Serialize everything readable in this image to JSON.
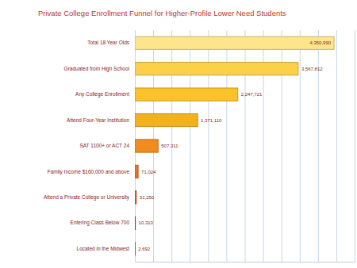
{
  "chart_data": {
    "type": "bar",
    "orientation": "horizontal",
    "title": "Private College Enrollment Funnel for Higher-Profile Lower Need Students",
    "categories": [
      "Total 18 Year Olds",
      "Graduated from High School",
      "Any College Enrollment",
      "Attend Four-Year Institution",
      "SAT 1100+ or ACT 24",
      "Family Income $160,000 and above",
      "Attend a Private College or University",
      "Entering Class Below 700",
      "Located in the Midwest"
    ],
    "values": [
      4350990,
      3567812,
      2247721,
      1371110,
      507311,
      71024,
      31250,
      10313,
      2692
    ],
    "value_labels": [
      "4,350,990",
      "3,567,812",
      "2,247,721",
      "1,371,110",
      "507,311",
      "71,024",
      "31,250",
      "10,313",
      "2,692"
    ],
    "colors": [
      "#fde58c",
      "#fdd04a",
      "#fcc22a",
      "#f2b21c",
      "#f28c1c",
      "#ea7324",
      "#e0612a",
      "#c9382a",
      "#b82626"
    ],
    "xlim": [
      0,
      4800000
    ],
    "xticks": [
      0,
      400000,
      800000,
      1200000,
      1600000,
      2000000,
      2400000,
      2800000,
      3200000,
      3600000,
      4000000,
      4400000,
      4800000
    ],
    "grid": true,
    "data_labels": true,
    "tick_labels": "y"
  }
}
